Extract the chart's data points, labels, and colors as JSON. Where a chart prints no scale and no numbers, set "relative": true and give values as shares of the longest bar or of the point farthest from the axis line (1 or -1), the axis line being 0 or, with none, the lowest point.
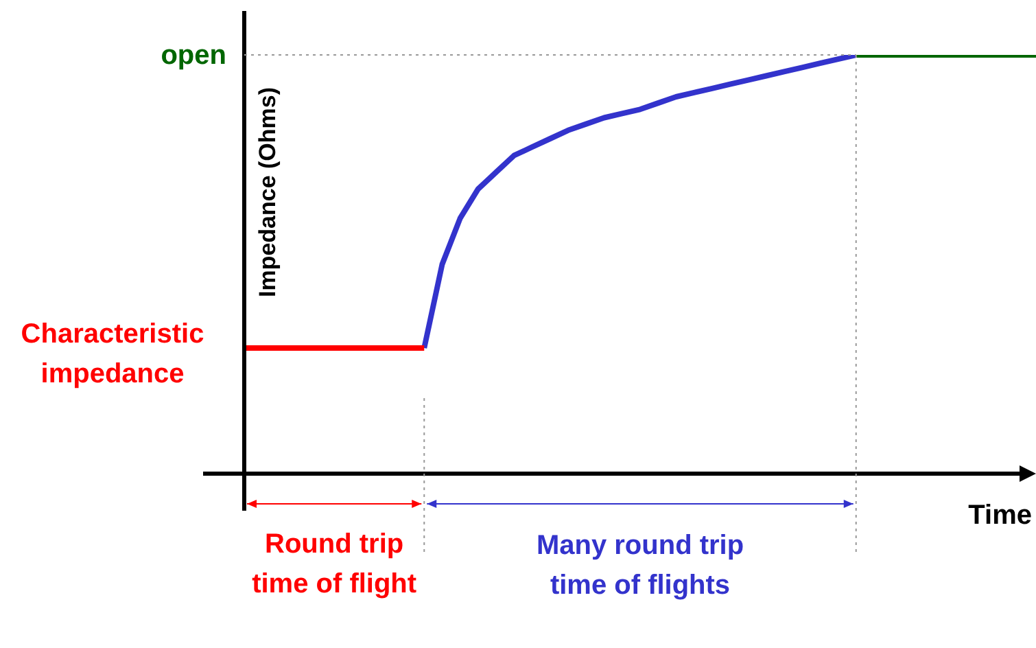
{
  "chart_data": {
    "type": "line",
    "relative": true,
    "xlabel": "Time",
    "ylabel": "Impedance (Ohms)",
    "legend": false,
    "categories": [
      null,
      null,
      null,
      null,
      null,
      null,
      null,
      null,
      null,
      null,
      null,
      null,
      null,
      null,
      null,
      null,
      null,
      null,
      null,
      null,
      null,
      null,
      null,
      null,
      null,
      null,
      null,
      null,
      null,
      null,
      null,
      null,
      null,
      null,
      null,
      null,
      null,
      null,
      null,
      null,
      null,
      null,
      null,
      null,
      null
    ],
    "series": [
      {
        "color": "#ff0000",
        "values": [
          0.3,
          0.3,
          0.3,
          0.3,
          0.3,
          0.3,
          0.3,
          0.3,
          0.3,
          0.3,
          0.3,
          null,
          null,
          null,
          null,
          null,
          null,
          null,
          null,
          null,
          null,
          null,
          null,
          null,
          null,
          null,
          null,
          null,
          null,
          null,
          null,
          null,
          null,
          null,
          null,
          null,
          null,
          null,
          null,
          null,
          null,
          null,
          null,
          null,
          null
        ]
      },
      {
        "color": "#3333cc",
        "values": [
          null,
          null,
          null,
          null,
          null,
          null,
          null,
          null,
          null,
          null,
          0.3,
          0.5,
          0.61,
          0.68,
          0.72,
          0.76,
          0.78,
          0.8,
          0.82,
          0.835,
          0.85,
          0.86,
          0.87,
          0.885,
          0.9,
          0.91,
          0.92,
          0.93,
          0.94,
          0.95,
          0.96,
          0.97,
          0.98,
          0.99,
          1,
          null,
          null,
          null,
          null,
          null,
          null,
          null,
          null,
          null,
          null
        ]
      },
      {
        "color": "#006600",
        "values": [
          null,
          null,
          null,
          null,
          null,
          null,
          null,
          null,
          null,
          null,
          null,
          null,
          null,
          null,
          null,
          null,
          null,
          null,
          null,
          null,
          null,
          null,
          null,
          null,
          null,
          null,
          null,
          null,
          null,
          null,
          null,
          null,
          null,
          null,
          1,
          1,
          1,
          1,
          1,
          1,
          1,
          1,
          1,
          1,
          1
        ]
      }
    ],
    "annotations": [
      "open",
      "Characteristic impedance",
      "Round trip time of flight",
      "Many round trip time of flights"
    ]
  }
}
